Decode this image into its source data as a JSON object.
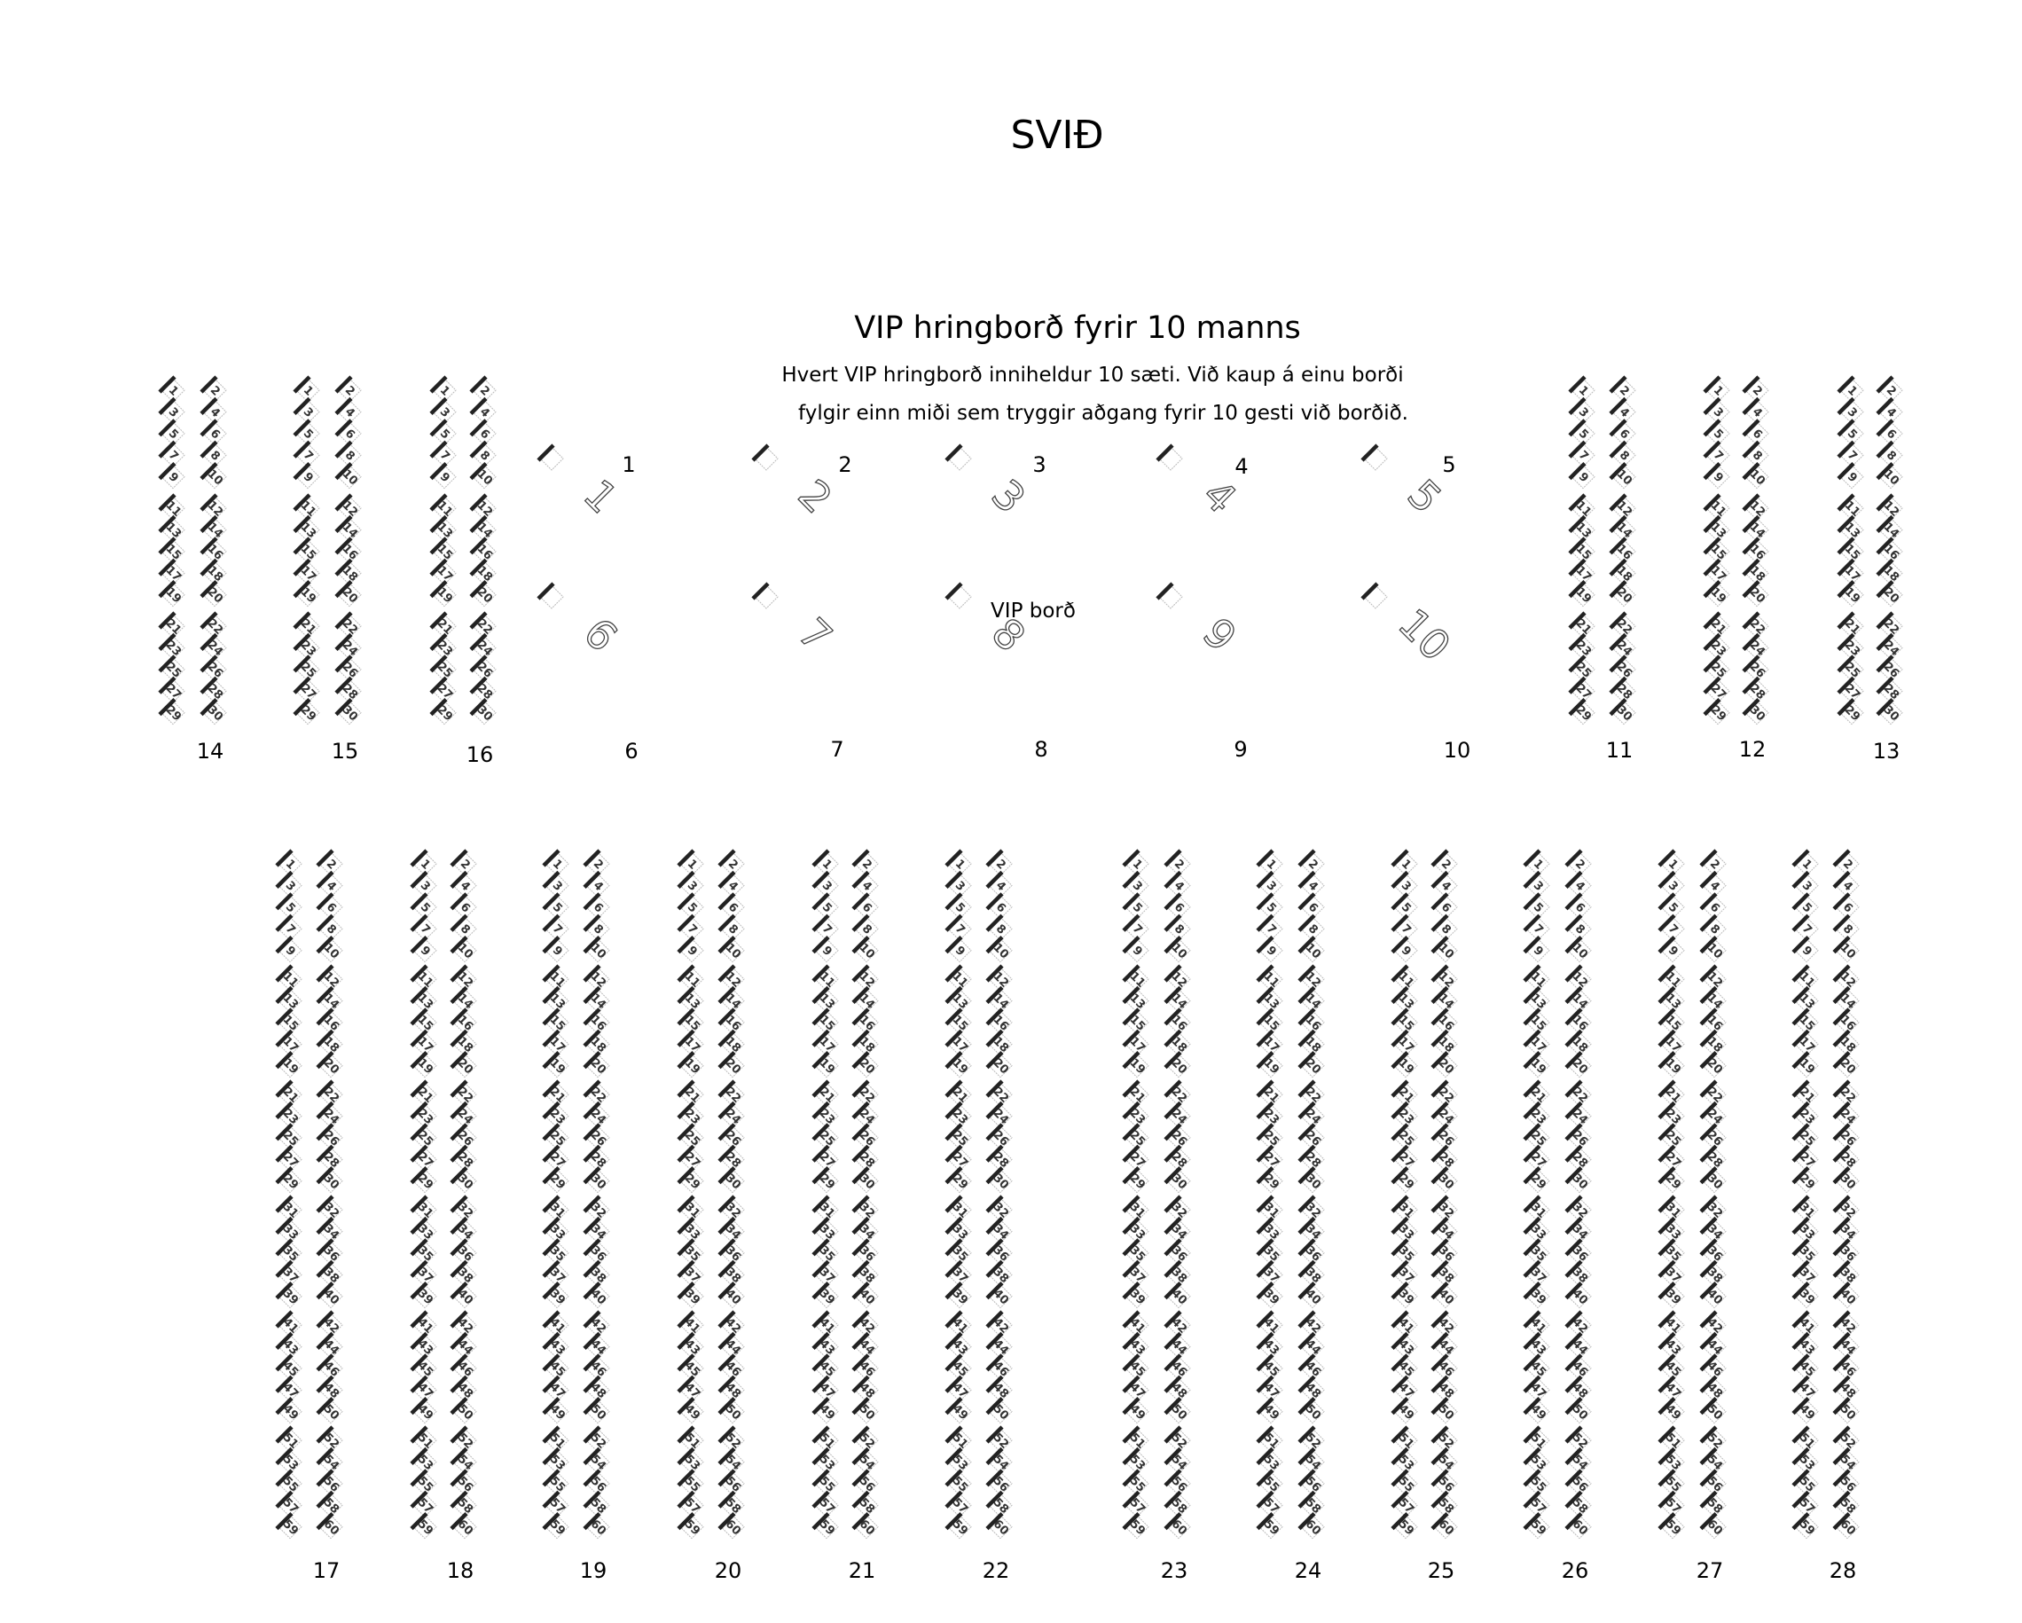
{
  "stage_label": "SVIÐ",
  "vip": {
    "title": "VIP hringborð fyrir 10 manns",
    "description_line1": "Hvert VIP hringborð inniheldur 10 sæti. Við kaup á einu borði",
    "description_line2": "fylgir einn miði sem tryggir aðgang fyrir 10 gesti við borðið.",
    "table_caption": "VIP borð",
    "tables": [
      {
        "label": "1",
        "big": "1"
      },
      {
        "label": "2",
        "big": "2"
      },
      {
        "label": "3",
        "big": "3"
      },
      {
        "label": "4",
        "big": "4"
      },
      {
        "label": "5",
        "big": "5"
      },
      {
        "label": "6",
        "big": "6"
      },
      {
        "label": "7",
        "big": "7"
      },
      {
        "label": "8",
        "big": "8"
      },
      {
        "label": "9",
        "big": "9"
      },
      {
        "label": "10",
        "big": "10"
      }
    ]
  },
  "top_blocks": [
    {
      "label": "14",
      "seats": 30
    },
    {
      "label": "15",
      "seats": 30
    },
    {
      "label": "16",
      "seats": 30
    },
    {
      "label": "11",
      "seats": 30
    },
    {
      "label": "12",
      "seats": 30
    },
    {
      "label": "13",
      "seats": 30
    }
  ],
  "bottom_blocks": [
    {
      "label": "17",
      "seats": 60
    },
    {
      "label": "18",
      "seats": 60
    },
    {
      "label": "19",
      "seats": 60
    },
    {
      "label": "20",
      "seats": 60
    },
    {
      "label": "21",
      "seats": 60
    },
    {
      "label": "22",
      "seats": 60
    },
    {
      "label": "23",
      "seats": 60
    },
    {
      "label": "24",
      "seats": 60
    },
    {
      "label": "25",
      "seats": 60
    },
    {
      "label": "26",
      "seats": 60
    },
    {
      "label": "27",
      "seats": 60
    },
    {
      "label": "28",
      "seats": 60
    }
  ],
  "colors": {
    "seat_bar": "#222222",
    "seat_outline": "#bbbbbb",
    "text": "#000000"
  }
}
